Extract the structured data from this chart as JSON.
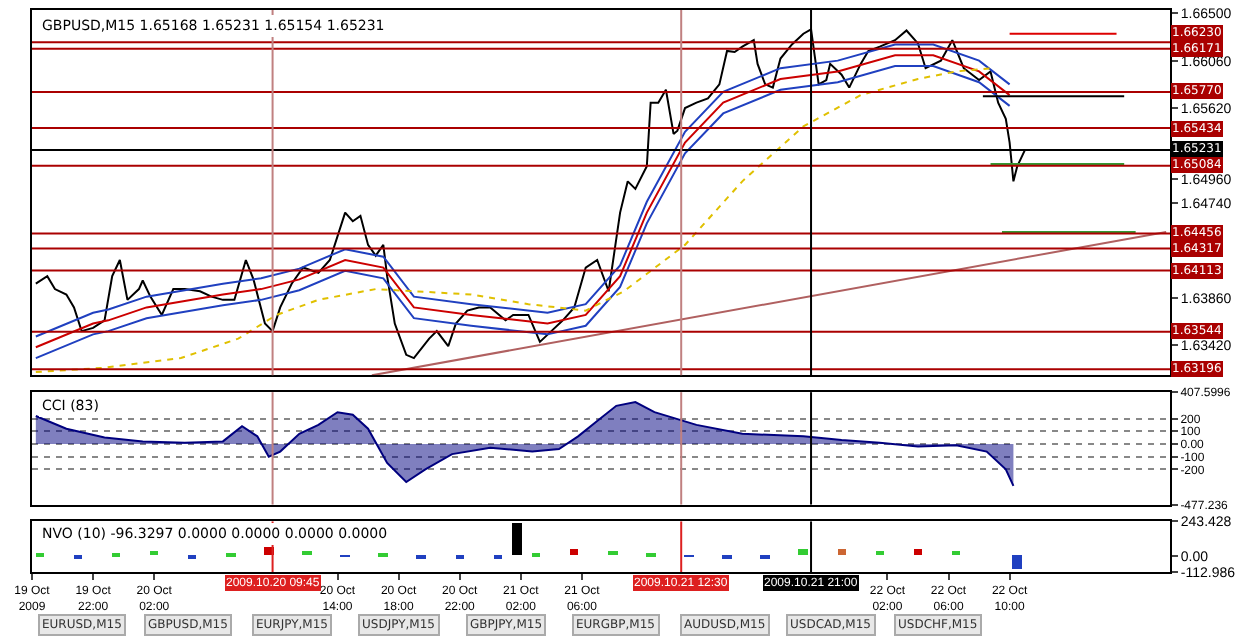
{
  "chart_data": [
    {
      "type": "line",
      "title": "GBPUSD,M15 1.65168 1.65231 1.65154 1.65231",
      "tick_labels": "y",
      "xlim": [
        "2009-10-19T18:00",
        "2009-10-22T20:30"
      ],
      "ylim": [
        1.6314,
        1.6653
      ],
      "yticks": [
        {
          "value": 1.665,
          "label": "1.66500"
        },
        {
          "value": 1.6606,
          "label": "1.66060"
        },
        {
          "value": 1.6562,
          "label": "1.65620"
        },
        {
          "value": 1.6496,
          "label": "1.64960"
        },
        {
          "value": 1.6474,
          "label": "1.64740"
        },
        {
          "value": 1.6386,
          "label": "1.63860"
        },
        {
          "value": 1.6342,
          "label": "1.63420"
        }
      ],
      "series": [
        {
          "color": "#000000",
          "x": [
            "2009-10-19T18:15",
            "2009-10-19T19:00",
            "2009-10-19T19:30",
            "2009-10-19T20:15",
            "2009-10-19T20:45",
            "2009-10-19T21:15",
            "2009-10-19T22:00",
            "2009-10-19T22:45",
            "2009-10-19T23:15",
            "2009-10-19T23:45",
            "2009-10-20T00:15",
            "2009-10-20T01:00",
            "2009-10-20T01:15",
            "2009-10-20T01:45",
            "2009-10-20T02:30",
            "2009-10-20T03:15",
            "2009-10-20T04:00",
            "2009-10-20T05:00",
            "2009-10-20T05:45",
            "2009-10-20T06:30",
            "2009-10-20T07:15",
            "2009-10-20T08:00",
            "2009-10-20T08:30",
            "2009-10-20T09:15",
            "2009-10-20T09:45",
            "2009-10-20T10:15",
            "2009-10-20T11:00",
            "2009-10-20T11:45",
            "2009-10-20T12:45",
            "2009-10-20T13:30",
            "2009-10-20T14:30",
            "2009-10-20T15:00",
            "2009-10-20T15:30",
            "2009-10-20T16:00",
            "2009-10-20T16:30",
            "2009-10-20T17:00",
            "2009-10-20T17:15",
            "2009-10-20T17:45",
            "2009-10-20T18:30",
            "2009-10-20T19:00",
            "2009-10-20T20:00",
            "2009-10-20T20:30",
            "2009-10-20T21:15",
            "2009-10-20T21:45",
            "2009-10-20T22:30",
            "2009-10-20T23:15",
            "2009-10-21T00:00",
            "2009-10-21T01:00",
            "2009-10-21T01:30",
            "2009-10-21T02:30",
            "2009-10-21T03:15",
            "2009-10-21T04:00",
            "2009-10-21T04:45",
            "2009-10-21T05:30",
            "2009-10-21T06:15",
            "2009-10-21T07:00",
            "2009-10-21T07:45",
            "2009-10-21T08:30",
            "2009-10-21T09:00",
            "2009-10-21T09:30",
            "2009-10-21T10:15",
            "2009-10-21T10:30",
            "2009-10-21T11:00",
            "2009-10-21T11:30",
            "2009-10-21T12:00",
            "2009-10-21T12:15",
            "2009-10-21T12:45",
            "2009-10-21T13:30",
            "2009-10-21T14:15",
            "2009-10-21T15:00",
            "2009-10-21T15:30",
            "2009-10-21T16:00",
            "2009-10-21T16:30",
            "2009-10-21T17:15",
            "2009-10-21T17:30",
            "2009-10-21T18:00",
            "2009-10-21T18:30",
            "2009-10-21T19:00",
            "2009-10-21T19:45",
            "2009-10-21T20:30",
            "2009-10-21T21:00",
            "2009-10-21T21:30",
            "2009-10-21T22:00",
            "2009-10-21T22:15",
            "2009-10-21T23:00",
            "2009-10-21T23:30",
            "2009-10-22T00:15",
            "2009-10-22T00:45",
            "2009-10-22T01:30",
            "2009-10-22T02:30",
            "2009-10-22T03:15",
            "2009-10-22T04:00",
            "2009-10-22T04:30",
            "2009-10-22T05:30",
            "2009-10-22T06:15",
            "2009-10-22T07:00",
            "2009-10-22T08:00",
            "2009-10-22T08:45",
            "2009-10-22T09:15",
            "2009-10-22T09:45",
            "2009-10-22T10:00",
            "2009-10-22T10:15",
            "2009-10-22T10:30",
            "2009-10-22T11:00"
          ],
          "values": [
            1.6399,
            1.6406,
            1.6394,
            1.6389,
            1.6377,
            1.6355,
            1.6358,
            1.6365,
            1.6406,
            1.6421,
            1.6384,
            1.6394,
            1.6402,
            1.6387,
            1.637,
            1.6394,
            1.6394,
            1.6392,
            1.6387,
            1.6384,
            1.6384,
            1.6421,
            1.6403,
            1.6362,
            1.6355,
            1.6377,
            1.6399,
            1.6414,
            1.6409,
            1.6421,
            1.6465,
            1.6457,
            1.6462,
            1.6435,
            1.6425,
            1.6435,
            1.6406,
            1.6362,
            1.6333,
            1.633,
            1.6348,
            1.6355,
            1.6341,
            1.6362,
            1.6374,
            1.6377,
            1.6377,
            1.6365,
            1.637,
            1.637,
            1.6345,
            1.6355,
            1.6365,
            1.6377,
            1.6414,
            1.6421,
            1.6392,
            1.6465,
            1.6494,
            1.6487,
            1.6508,
            1.6567,
            1.6567,
            1.6579,
            1.6538,
            1.6541,
            1.6562,
            1.6567,
            1.6571,
            1.6584,
            1.6615,
            1.6614,
            1.6619,
            1.6625,
            1.6603,
            1.6584,
            1.6581,
            1.6608,
            1.6621,
            1.6631,
            1.6635,
            1.6584,
            1.6588,
            1.6603,
            1.6593,
            1.6581,
            1.6603,
            1.6615,
            1.6619,
            1.6625,
            1.6634,
            1.6622,
            1.6599,
            1.6606,
            1.6625,
            1.6599,
            1.6588,
            1.6596,
            1.6567,
            1.6552,
            1.653,
            1.6494,
            1.6508,
            1.6523
          ]
        },
        {
          "color": "#cc0000",
          "x": [
            "2009-10-19T18:15",
            "2009-10-19T22:00",
            "2009-10-19T23:00",
            "2009-10-20T01:30",
            "2009-10-20T06:30",
            "2009-10-20T09:00",
            "2009-10-20T11:30",
            "2009-10-20T14:30",
            "2009-10-20T17:00",
            "2009-10-20T19:00",
            "2009-10-20T22:45",
            "2009-10-21T03:45",
            "2009-10-21T06:15",
            "2009-10-21T08:30",
            "2009-10-21T10:15",
            "2009-10-21T12:45",
            "2009-10-21T15:15",
            "2009-10-21T19:00",
            "2009-10-21T22:45",
            "2009-10-22T02:30",
            "2009-10-22T05:00",
            "2009-10-22T08:00",
            "2009-10-22T10:00"
          ],
          "values": [
            1.634,
            1.6362,
            1.6365,
            1.6377,
            1.6389,
            1.6394,
            1.6403,
            1.6421,
            1.6414,
            1.6377,
            1.637,
            1.6362,
            1.637,
            1.6406,
            1.6465,
            1.653,
            1.6567,
            1.6589,
            1.6596,
            1.6611,
            1.6611,
            1.6596,
            1.6574
          ]
        },
        {
          "color": "#2040c0",
          "x": [
            "2009-10-19T18:15",
            "2009-10-19T22:00",
            "2009-10-19T23:00",
            "2009-10-20T01:30",
            "2009-10-20T06:30",
            "2009-10-20T09:00",
            "2009-10-20T11:30",
            "2009-10-20T14:30",
            "2009-10-20T17:00",
            "2009-10-20T19:00",
            "2009-10-20T22:45",
            "2009-10-21T03:45",
            "2009-10-21T06:15",
            "2009-10-21T08:30",
            "2009-10-21T10:15",
            "2009-10-21T12:45",
            "2009-10-21T15:15",
            "2009-10-21T19:00",
            "2009-10-21T22:45",
            "2009-10-22T02:30",
            "2009-10-22T05:00",
            "2009-10-22T08:00",
            "2009-10-22T10:00"
          ],
          "values": [
            1.635,
            1.6372,
            1.6375,
            1.6387,
            1.6399,
            1.6404,
            1.6413,
            1.6431,
            1.6424,
            1.6387,
            1.638,
            1.6372,
            1.638,
            1.6416,
            1.6475,
            1.654,
            1.6577,
            1.6599,
            1.6606,
            1.6621,
            1.6621,
            1.6606,
            1.6584
          ]
        },
        {
          "color": "#2040c0",
          "x": [
            "2009-10-19T18:15",
            "2009-10-19T22:00",
            "2009-10-19T23:00",
            "2009-10-20T01:30",
            "2009-10-20T06:30",
            "2009-10-20T09:00",
            "2009-10-20T11:30",
            "2009-10-20T14:30",
            "2009-10-20T17:00",
            "2009-10-20T19:00",
            "2009-10-20T22:45",
            "2009-10-21T03:45",
            "2009-10-21T06:15",
            "2009-10-21T08:30",
            "2009-10-21T10:15",
            "2009-10-21T12:45",
            "2009-10-21T15:15",
            "2009-10-21T19:00",
            "2009-10-21T22:45",
            "2009-10-22T02:30",
            "2009-10-22T05:00",
            "2009-10-22T08:00",
            "2009-10-22T10:00"
          ],
          "values": [
            1.633,
            1.6352,
            1.6355,
            1.6367,
            1.6379,
            1.6384,
            1.6393,
            1.6411,
            1.6404,
            1.6367,
            1.636,
            1.6352,
            1.636,
            1.6396,
            1.6455,
            1.652,
            1.6557,
            1.6579,
            1.6586,
            1.6601,
            1.6601,
            1.6586,
            1.6564
          ]
        },
        {
          "color": "#e0c000",
          "line_style": "dotted",
          "x": [
            "2009-10-19T18:15",
            "2009-10-19T22:45",
            "2009-10-20T03:45",
            "2009-10-20T07:30",
            "2009-10-20T10:00",
            "2009-10-20T12:45",
            "2009-10-20T16:30",
            "2009-10-20T19:00",
            "2009-10-20T22:45",
            "2009-10-21T02:30",
            "2009-10-21T06:15",
            "2009-10-21T08:45",
            "2009-10-21T12:45",
            "2009-10-21T16:30",
            "2009-10-21T20:30",
            "2009-10-22T00:15",
            "2009-10-22T04:00",
            "2009-10-22T06:30",
            "2009-10-22T09:00"
          ],
          "values": [
            1.6317,
            1.6321,
            1.633,
            1.6348,
            1.637,
            1.6384,
            1.6394,
            1.6392,
            1.6389,
            1.638,
            1.6374,
            1.6392,
            1.6435,
            1.6494,
            1.6545,
            1.6574,
            1.6589,
            1.6596,
            1.6599
          ]
        },
        {
          "color": "#b06060",
          "x": [
            "2009-10-20T16:15",
            "2009-10-22T20:15"
          ],
          "values": [
            1.6314,
            1.6447
          ]
        },
        {
          "color": "#dd0000",
          "x": [
            "2009-10-22T10:00",
            "2009-10-22T17:00"
          ],
          "values": [
            1.6631,
            1.6631
          ]
        },
        {
          "color": "#000000",
          "x": [
            "2009-10-22T08:15",
            "2009-10-22T17:30"
          ],
          "values": [
            1.6573,
            1.6573
          ]
        },
        {
          "color": "#339933",
          "x": [
            "2009-10-22T08:45",
            "2009-10-22T17:30"
          ],
          "values": [
            1.651,
            1.651
          ]
        },
        {
          "color": "#339933",
          "x": [
            "2009-10-22T09:30",
            "2009-10-22T18:15"
          ],
          "values": [
            1.6447,
            1.6447
          ]
        }
      ],
      "ref_lines": [
        {
          "axis": "y",
          "value": 1.6623,
          "label": "1.66230",
          "color": "#aa0000"
        },
        {
          "axis": "y",
          "value": 1.66171,
          "label": "1.66171",
          "color": "#aa0000"
        },
        {
          "axis": "y",
          "value": 1.6577,
          "label": "1.65770",
          "color": "#aa0000"
        },
        {
          "axis": "y",
          "value": 1.65434,
          "label": "1.65434",
          "color": "#aa0000"
        },
        {
          "axis": "y",
          "value": 1.65231,
          "label": "1.65231",
          "color": "#000000"
        },
        {
          "axis": "y",
          "value": 1.65084,
          "label": "1.65084",
          "color": "#aa0000"
        },
        {
          "axis": "y",
          "value": 1.64456,
          "label": "1.64456",
          "color": "#aa0000"
        },
        {
          "axis": "y",
          "value": 1.64317,
          "label": "1.64317",
          "color": "#aa0000"
        },
        {
          "axis": "y",
          "value": 1.64113,
          "label": "1.64113",
          "color": "#aa0000"
        },
        {
          "axis": "y",
          "value": 1.63544,
          "label": "1.63544",
          "color": "#aa0000"
        },
        {
          "axis": "y",
          "value": 1.63196,
          "label": "1.63196",
          "color": "#aa0000"
        },
        {
          "axis": "x",
          "value": "2009-10-20T09:45",
          "color": "#c08080"
        },
        {
          "axis": "x",
          "value": "2009-10-21T12:30",
          "color": "#c08080"
        },
        {
          "axis": "x",
          "value": "2009-10-21T21:00",
          "color": "#000000"
        }
      ]
    },
    {
      "type": "area",
      "title": "CCI (83)",
      "tick_labels": "y",
      "xlim": [
        "2009-10-19T18:00",
        "2009-10-22T20:30"
      ],
      "ylim": [
        -477.236,
        407.5996
      ],
      "grid": "y",
      "yticks": [
        {
          "value": 407.5996,
          "label": "407.5996"
        },
        200,
        100,
        {
          "value": 0,
          "label": "0.00"
        },
        -100,
        -200,
        {
          "value": -477.236,
          "label": "-477.236"
        }
      ],
      "series": [
        {
          "color": "#00007f",
          "x": [
            "2009-10-19T18:15",
            "2009-10-19T20:15",
            "2009-10-19T22:45",
            "2009-10-20T01:15",
            "2009-10-20T04:00",
            "2009-10-20T06:30",
            "2009-10-20T07:45",
            "2009-10-20T08:45",
            "2009-10-20T09:30",
            "2009-10-20T10:15",
            "2009-10-20T11:30",
            "2009-10-20T12:45",
            "2009-10-20T14:00",
            "2009-10-20T15:00",
            "2009-10-20T16:00",
            "2009-10-20T17:15",
            "2009-10-20T18:30",
            "2009-10-20T19:45",
            "2009-10-20T21:30",
            "2009-10-21T00:00",
            "2009-10-21T02:45",
            "2009-10-21T04:30",
            "2009-10-21T05:45",
            "2009-10-21T07:00",
            "2009-10-21T08:15",
            "2009-10-21T09:30",
            "2009-10-21T10:45",
            "2009-10-21T13:30",
            "2009-10-21T16:30",
            "2009-10-21T20:30",
            "2009-10-21T23:00",
            "2009-10-22T01:30",
            "2009-10-22T04:00",
            "2009-10-22T06:30",
            "2009-10-22T08:30",
            "2009-10-22T09:45",
            "2009-10-22T10:15"
          ],
          "values": [
            220,
            120,
            50,
            20,
            10,
            20,
            140,
            60,
            -100,
            -60,
            80,
            150,
            250,
            230,
            120,
            -150,
            -300,
            -200,
            -80,
            -30,
            -60,
            -40,
            60,
            180,
            300,
            330,
            250,
            150,
            80,
            60,
            30,
            10,
            -20,
            -10,
            -60,
            -200,
            -330
          ]
        }
      ],
      "ref_lines": [
        {
          "axis": "x",
          "value": "2009-10-20T09:45",
          "color": "#c08080"
        },
        {
          "axis": "x",
          "value": "2009-10-21T12:30",
          "color": "#c08080"
        },
        {
          "axis": "x",
          "value": "2009-10-21T21:00",
          "color": "#000000"
        }
      ]
    },
    {
      "type": "bar",
      "title": "NVO (10) -96.3297 0.0000 0.0000 0.0000 0.0000",
      "xlim": [
        "2009-10-19T18:00",
        "2009-10-22T20:30"
      ],
      "ylim": [
        -112.986,
        243.428
      ],
      "yticks": [
        {
          "value": 243.428,
          "label": "243.428"
        },
        {
          "value": 0,
          "label": "0.00"
        },
        {
          "value": -112.986,
          "label": "-112.986"
        }
      ],
      "xticks": [
        {
          "value": "2009-10-19T18:00",
          "label": "19 Oct 2009"
        },
        {
          "value": "2009-10-19T22:00",
          "label": "19 Oct 22:00"
        },
        {
          "value": "2009-10-20T02:00",
          "label": "20 Oct 02:00"
        },
        {
          "value": "2009-10-20T14:00",
          "label": "20 Oct 14:00"
        },
        {
          "value": "2009-10-20T18:00",
          "label": "20 Oct 18:00"
        },
        {
          "value": "2009-10-20T22:00",
          "label": "20 Oct 22:00"
        },
        {
          "value": "2009-10-21T02:00",
          "label": "21 Oct 02:00"
        },
        {
          "value": "2009-10-21T06:00",
          "label": "21 Oct 06:00"
        },
        {
          "value": "2009-10-22T02:00",
          "label": "22 Oct 02:00"
        },
        {
          "value": "2009-10-22T06:00",
          "label": "22 Oct 06:00"
        },
        {
          "value": "2009-10-22T10:00",
          "label": "22 Oct 10:00"
        }
      ],
      "x": [
        "2009-10-19T18:30",
        "2009-10-19T21:00",
        "2009-10-19T23:30",
        "2009-10-20T02:00",
        "2009-10-20T04:30",
        "2009-10-20T07:00",
        "2009-10-20T09:30",
        "2009-10-20T12:00",
        "2009-10-20T14:30",
        "2009-10-20T17:00",
        "2009-10-20T19:30",
        "2009-10-20T22:00",
        "2009-10-21T00:30",
        "2009-10-21T01:45",
        "2009-10-21T03:00",
        "2009-10-21T05:30",
        "2009-10-21T08:00",
        "2009-10-21T10:30",
        "2009-10-21T13:00",
        "2009-10-21T15:30",
        "2009-10-21T18:00",
        "2009-10-21T20:30",
        "2009-10-21T23:00",
        "2009-10-22T01:30",
        "2009-10-22T04:00",
        "2009-10-22T06:30",
        "2009-10-22T10:30"
      ],
      "values": [
        20,
        -20,
        10,
        30,
        -20,
        20,
        60,
        30,
        -10,
        20,
        -20,
        -30,
        -20,
        230,
        10,
        40,
        30,
        20,
        -10,
        -30,
        -30,
        40,
        50,
        30,
        50,
        30,
        -100
      ],
      "colors": [
        "#33cc33",
        "#2040c0",
        "#33cc33",
        "#33cc33",
        "#2040c0",
        "#33cc33",
        "#cc0000",
        "#33cc33",
        "#2040c0",
        "#33cc33",
        "#2040c0",
        "#2040c0",
        "#2040c0",
        "#000000",
        "#33cc33",
        "#cc0000",
        "#33cc33",
        "#33cc33",
        "#2040c0",
        "#2040c0",
        "#2040c0",
        "#33cc33",
        "#cc6633",
        "#33cc33",
        "#cc0000",
        "#33cc33",
        "#2040c0"
      ],
      "ref_lines": [
        {
          "axis": "x",
          "value": "2009-10-20T09:45",
          "label": "2009.10.20 09:45",
          "color": "#dd2020"
        },
        {
          "axis": "x",
          "value": "2009-10-21T12:30",
          "label": "2009.10.21 12:30",
          "color": "#dd2020"
        },
        {
          "axis": "x",
          "value": "2009-10-21T21:00",
          "label": "2009.10.21 21:00",
          "color": "#000000"
        }
      ],
      "annotations": [
        "EURUSD,M15",
        "GBPUSD,M15",
        "EURJPY,M15",
        "USDJPY,M15",
        "GBPJPY,M15",
        "EURGBP,M15",
        "AUDUSD,M15",
        "USDCAD,M15",
        "USDCHF,M15"
      ]
    }
  ]
}
